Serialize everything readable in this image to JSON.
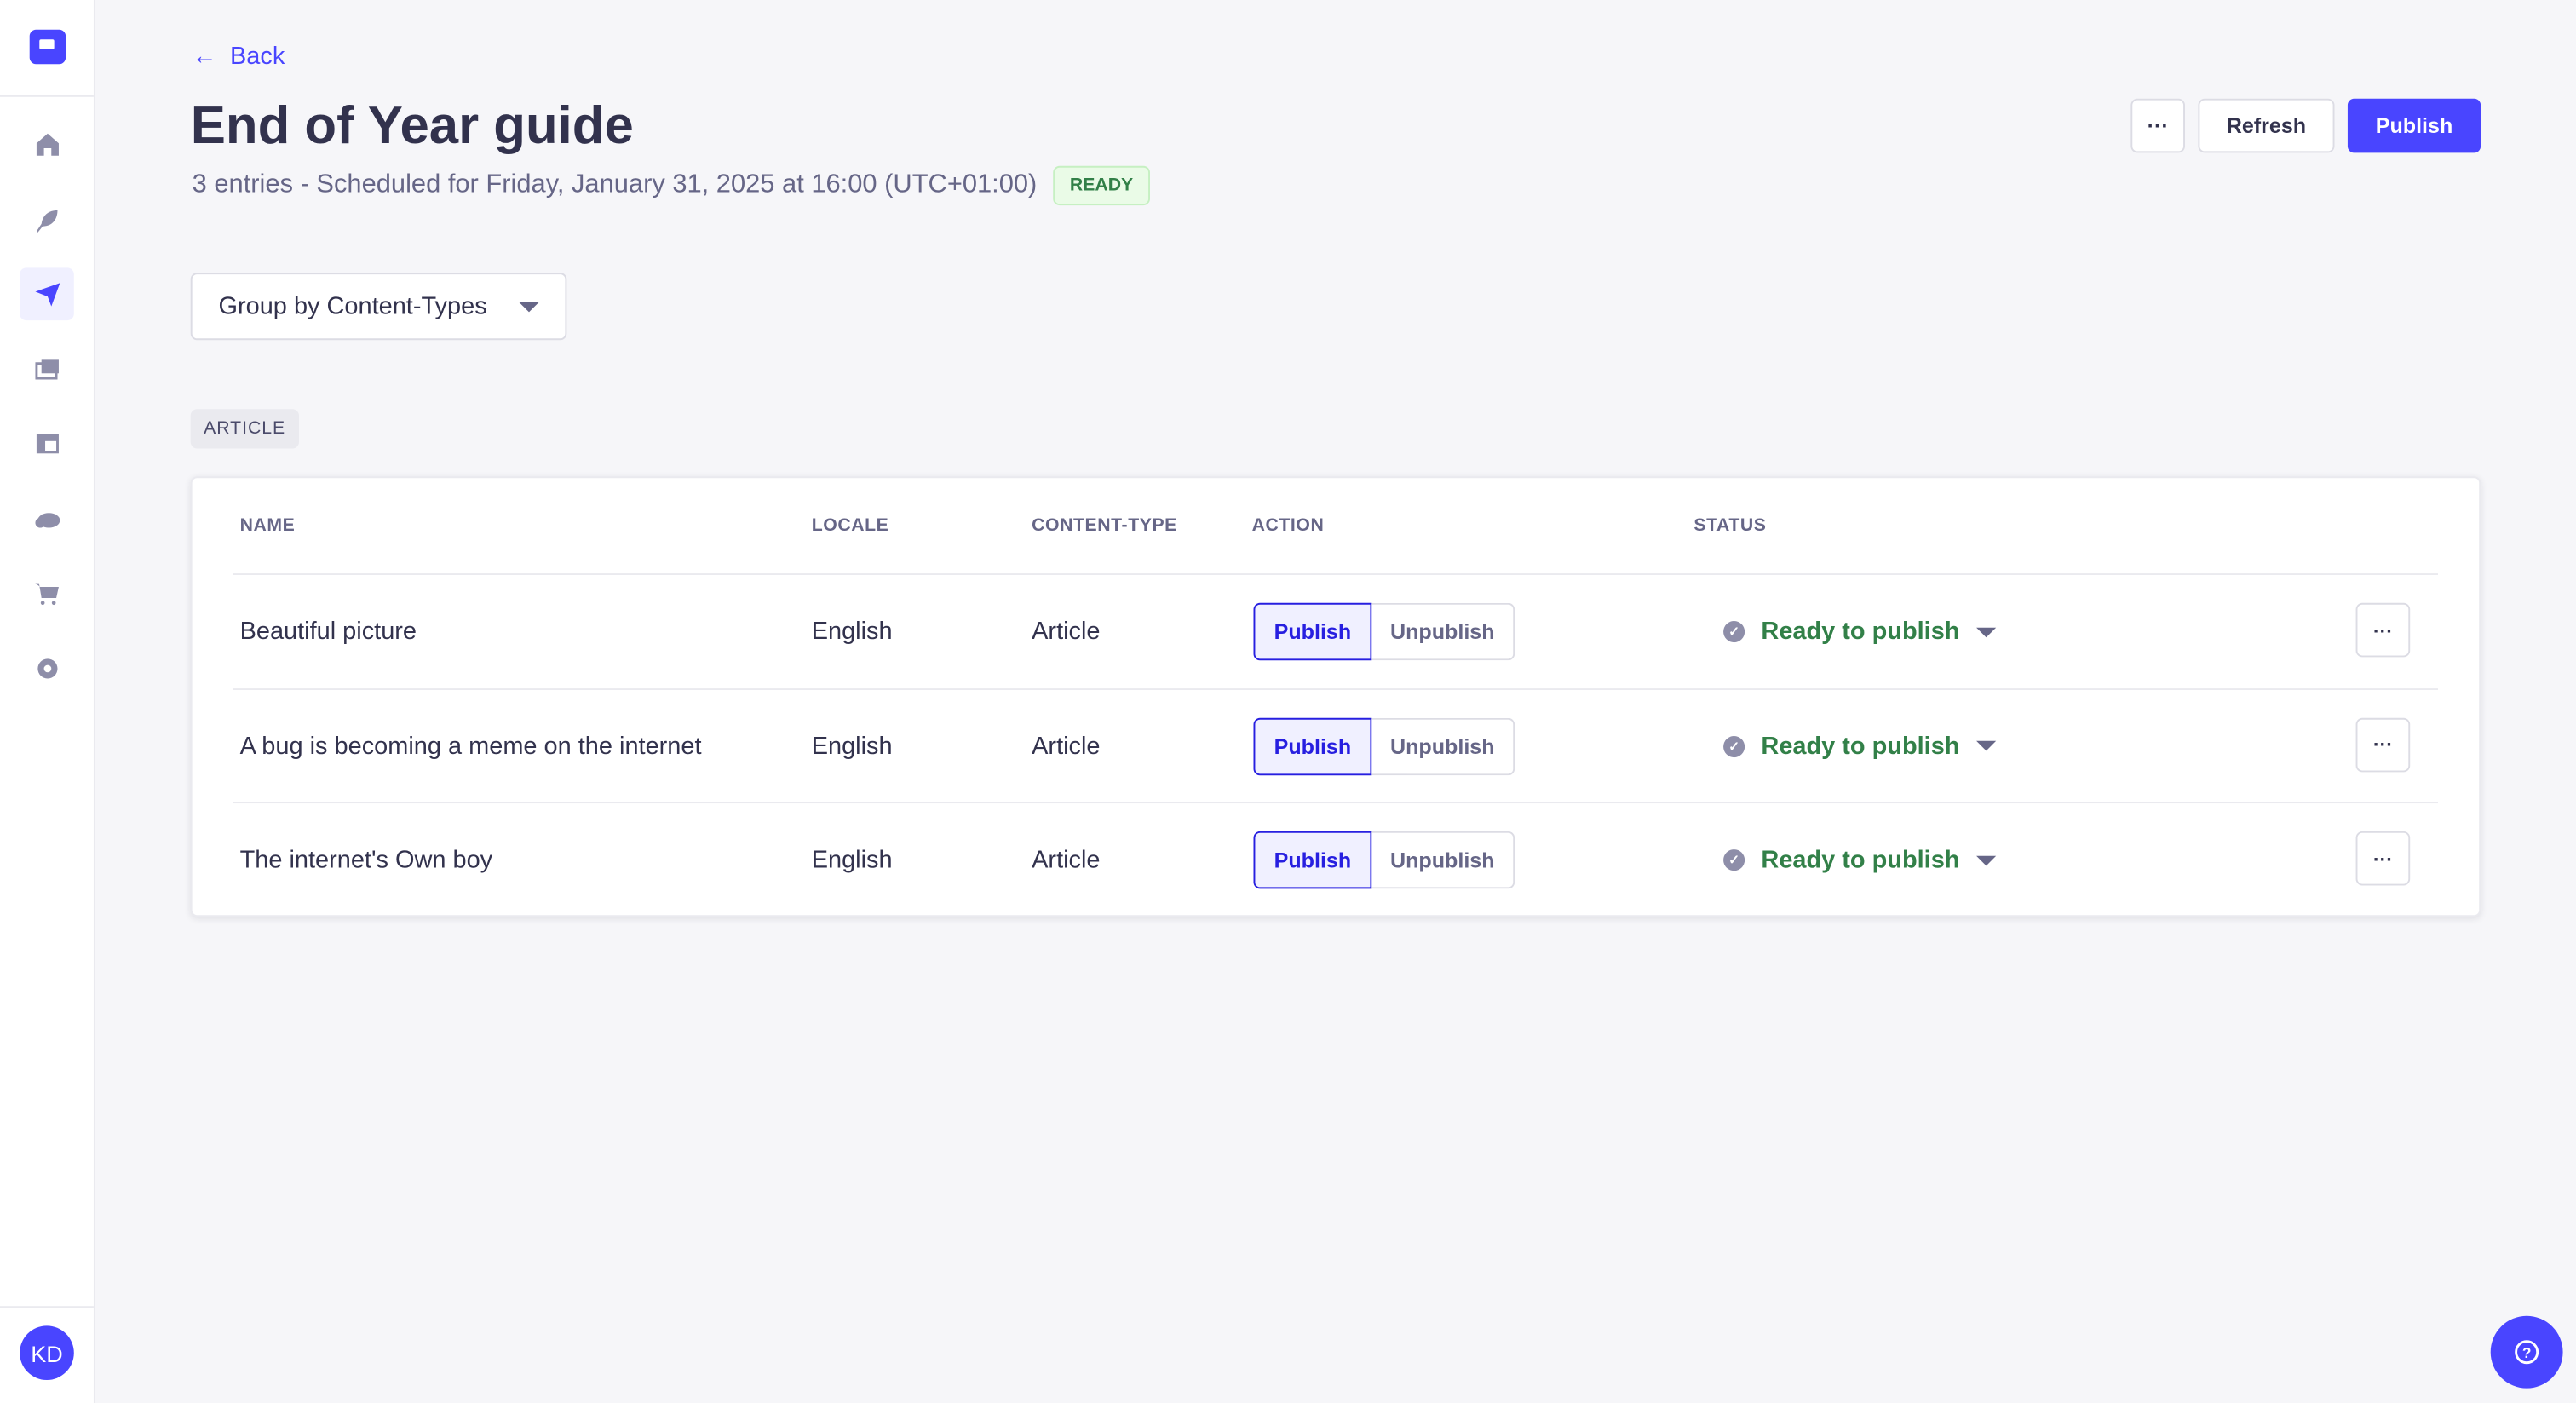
{
  "sidebar": {
    "items": [
      {
        "icon": "home-icon"
      },
      {
        "icon": "feather-icon"
      },
      {
        "icon": "paper-plane-icon",
        "active": true
      },
      {
        "icon": "images-icon"
      },
      {
        "icon": "layout-icon"
      },
      {
        "icon": "cloud-icon"
      },
      {
        "icon": "cart-icon"
      },
      {
        "icon": "gear-icon"
      }
    ],
    "avatar": "KD"
  },
  "header": {
    "back": "Back",
    "title": "End of Year guide",
    "subtitle": "3 entries - Scheduled for Friday, January 31, 2025 at 16:00 (UTC+01:00)",
    "badge": "READY",
    "more": "···",
    "refresh": "Refresh",
    "publish": "Publish"
  },
  "group_select": {
    "value": "Group by Content-Types"
  },
  "group_tag": "ARTICLE",
  "table": {
    "columns": [
      "NAME",
      "LOCALE",
      "CONTENT-TYPE",
      "ACTION",
      "STATUS"
    ],
    "rows": [
      {
        "name": "Beautiful picture",
        "locale": "English",
        "type": "Article",
        "publish": "Publish",
        "unpublish": "Unpublish",
        "status": "Ready to publish",
        "more": "···"
      },
      {
        "name": "A bug is becoming a meme on the internet",
        "locale": "English",
        "type": "Article",
        "publish": "Publish",
        "unpublish": "Unpublish",
        "status": "Ready to publish",
        "more": "···"
      },
      {
        "name": "The internet's Own boy",
        "locale": "English",
        "type": "Article",
        "publish": "Publish",
        "unpublish": "Unpublish",
        "status": "Ready to publish",
        "more": "···"
      }
    ]
  },
  "colors": {
    "primary": "#4945ff",
    "success": "#328048",
    "text": "#32324d"
  }
}
